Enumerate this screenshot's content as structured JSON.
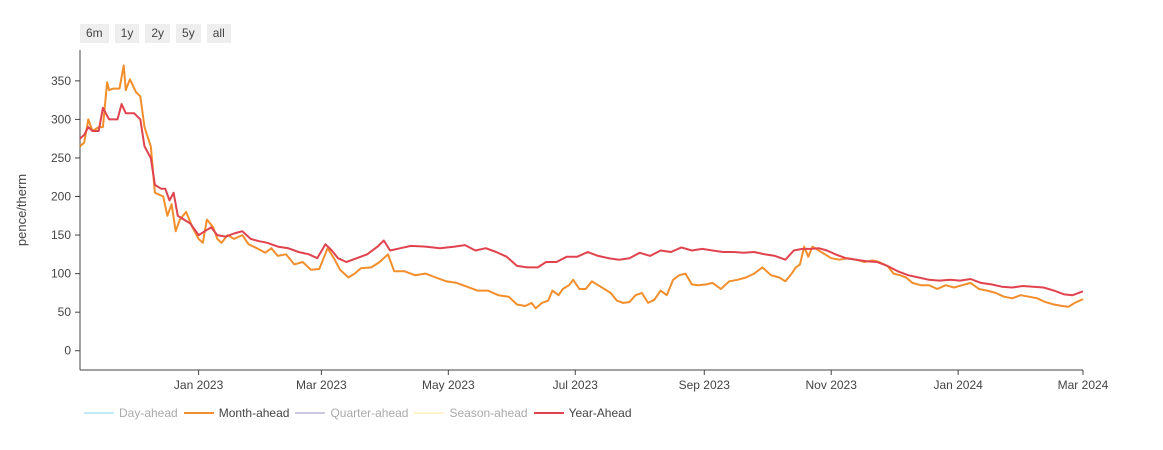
{
  "range_buttons": [
    "6m",
    "1y",
    "2y",
    "5y",
    "all"
  ],
  "chart_data": {
    "type": "line",
    "ylabel": "pence/therm",
    "xlabel": "",
    "ylim": [
      -25,
      390
    ],
    "xlim": [
      "2022-11-05",
      "2024-03-01"
    ],
    "yticks": [
      0,
      50,
      100,
      150,
      200,
      250,
      300,
      350
    ],
    "xticks": [
      {
        "date": "2023-01-01",
        "label": "Jan 2023"
      },
      {
        "date": "2023-03-01",
        "label": "Mar 2023"
      },
      {
        "date": "2023-05-01",
        "label": "May 2023"
      },
      {
        "date": "2023-07-01",
        "label": "Jul 2023"
      },
      {
        "date": "2023-09-01",
        "label": "Sep 2023"
      },
      {
        "date": "2023-11-01",
        "label": "Nov 2023"
      },
      {
        "date": "2024-01-01",
        "label": "Jan 2024"
      },
      {
        "date": "2024-03-01",
        "label": "Mar 2024"
      }
    ],
    "grid": false,
    "legend_position": "bottom-left",
    "series": [
      {
        "name": "Day-ahead",
        "color": "#7fd8ee",
        "visible": false,
        "points": []
      },
      {
        "name": "Month-ahead",
        "color": "#f28e2b",
        "visible": true,
        "points": [
          [
            "2022-11-05",
            265
          ],
          [
            "2022-11-07",
            270
          ],
          [
            "2022-11-09",
            300
          ],
          [
            "2022-11-11",
            285
          ],
          [
            "2022-11-14",
            290
          ],
          [
            "2022-11-16",
            290
          ],
          [
            "2022-11-18",
            348
          ],
          [
            "2022-11-19",
            338
          ],
          [
            "2022-11-21",
            340
          ],
          [
            "2022-11-24",
            340
          ],
          [
            "2022-11-26",
            370
          ],
          [
            "2022-11-27",
            338
          ],
          [
            "2022-11-29",
            352
          ],
          [
            "2022-12-02",
            335
          ],
          [
            "2022-12-04",
            330
          ],
          [
            "2022-12-06",
            290
          ],
          [
            "2022-12-09",
            265
          ],
          [
            "2022-12-11",
            205
          ],
          [
            "2022-12-15",
            200
          ],
          [
            "2022-12-17",
            175
          ],
          [
            "2022-12-19",
            190
          ],
          [
            "2022-12-21",
            155
          ],
          [
            "2022-12-23",
            170
          ],
          [
            "2022-12-26",
            180
          ],
          [
            "2022-12-29",
            160
          ],
          [
            "2023-01-01",
            145
          ],
          [
            "2023-01-03",
            140
          ],
          [
            "2023-01-05",
            170
          ],
          [
            "2023-01-08",
            160
          ],
          [
            "2023-01-10",
            145
          ],
          [
            "2023-01-12",
            140
          ],
          [
            "2023-01-15",
            150
          ],
          [
            "2023-01-18",
            145
          ],
          [
            "2023-01-22",
            150
          ],
          [
            "2023-01-25",
            138
          ],
          [
            "2023-01-29",
            133
          ],
          [
            "2023-02-02",
            127
          ],
          [
            "2023-02-05",
            133
          ],
          [
            "2023-02-08",
            123
          ],
          [
            "2023-02-12",
            125
          ],
          [
            "2023-02-16",
            112
          ],
          [
            "2023-02-20",
            115
          ],
          [
            "2023-02-24",
            105
          ],
          [
            "2023-02-28",
            106
          ],
          [
            "2023-03-04",
            133
          ],
          [
            "2023-03-07",
            120
          ],
          [
            "2023-03-10",
            105
          ],
          [
            "2023-03-14",
            95
          ],
          [
            "2023-03-17",
            100
          ],
          [
            "2023-03-20",
            107
          ],
          [
            "2023-03-25",
            108
          ],
          [
            "2023-03-29",
            115
          ],
          [
            "2023-04-02",
            125
          ],
          [
            "2023-04-05",
            103
          ],
          [
            "2023-04-10",
            103
          ],
          [
            "2023-04-15",
            98
          ],
          [
            "2023-04-20",
            100
          ],
          [
            "2023-04-25",
            95
          ],
          [
            "2023-04-30",
            90
          ],
          [
            "2023-05-05",
            88
          ],
          [
            "2023-05-10",
            83
          ],
          [
            "2023-05-15",
            78
          ],
          [
            "2023-05-20",
            78
          ],
          [
            "2023-05-25",
            72
          ],
          [
            "2023-05-30",
            70
          ],
          [
            "2023-06-03",
            60
          ],
          [
            "2023-06-07",
            58
          ],
          [
            "2023-06-10",
            62
          ],
          [
            "2023-06-12",
            55
          ],
          [
            "2023-06-15",
            62
          ],
          [
            "2023-06-18",
            65
          ],
          [
            "2023-06-20",
            78
          ],
          [
            "2023-06-23",
            72
          ],
          [
            "2023-06-25",
            80
          ],
          [
            "2023-06-28",
            85
          ],
          [
            "2023-06-30",
            92
          ],
          [
            "2023-07-03",
            80
          ],
          [
            "2023-07-06",
            80
          ],
          [
            "2023-07-09",
            90
          ],
          [
            "2023-07-12",
            85
          ],
          [
            "2023-07-15",
            80
          ],
          [
            "2023-07-18",
            75
          ],
          [
            "2023-07-21",
            65
          ],
          [
            "2023-07-24",
            62
          ],
          [
            "2023-07-27",
            63
          ],
          [
            "2023-07-30",
            72
          ],
          [
            "2023-08-02",
            75
          ],
          [
            "2023-08-05",
            62
          ],
          [
            "2023-08-08",
            66
          ],
          [
            "2023-08-11",
            78
          ],
          [
            "2023-08-14",
            72
          ],
          [
            "2023-08-17",
            92
          ],
          [
            "2023-08-20",
            98
          ],
          [
            "2023-08-23",
            100
          ],
          [
            "2023-08-26",
            86
          ],
          [
            "2023-08-29",
            85
          ],
          [
            "2023-09-02",
            86
          ],
          [
            "2023-09-05",
            88
          ],
          [
            "2023-09-09",
            80
          ],
          [
            "2023-09-13",
            90
          ],
          [
            "2023-09-17",
            92
          ],
          [
            "2023-09-21",
            95
          ],
          [
            "2023-09-25",
            100
          ],
          [
            "2023-09-29",
            108
          ],
          [
            "2023-10-03",
            98
          ],
          [
            "2023-10-07",
            95
          ],
          [
            "2023-10-10",
            90
          ],
          [
            "2023-10-13",
            100
          ],
          [
            "2023-10-15",
            108
          ],
          [
            "2023-10-17",
            112
          ],
          [
            "2023-10-19",
            135
          ],
          [
            "2023-10-21",
            122
          ],
          [
            "2023-10-23",
            135
          ],
          [
            "2023-10-26",
            130
          ],
          [
            "2023-10-29",
            125
          ],
          [
            "2023-11-01",
            120
          ],
          [
            "2023-11-05",
            118
          ],
          [
            "2023-11-09",
            120
          ],
          [
            "2023-11-13",
            118
          ],
          [
            "2023-11-17",
            115
          ],
          [
            "2023-11-21",
            117
          ],
          [
            "2023-11-24",
            115
          ],
          [
            "2023-11-28",
            110
          ],
          [
            "2023-12-01",
            100
          ],
          [
            "2023-12-04",
            98
          ],
          [
            "2023-12-07",
            95
          ],
          [
            "2023-12-10",
            88
          ],
          [
            "2023-12-14",
            85
          ],
          [
            "2023-12-18",
            85
          ],
          [
            "2023-12-22",
            80
          ],
          [
            "2023-12-26",
            85
          ],
          [
            "2023-12-30",
            82
          ],
          [
            "2024-01-03",
            85
          ],
          [
            "2024-01-07",
            88
          ],
          [
            "2024-01-11",
            80
          ],
          [
            "2024-01-15",
            78
          ],
          [
            "2024-01-19",
            75
          ],
          [
            "2024-01-23",
            70
          ],
          [
            "2024-01-27",
            68
          ],
          [
            "2024-01-31",
            72
          ],
          [
            "2024-02-04",
            70
          ],
          [
            "2024-02-08",
            68
          ],
          [
            "2024-02-12",
            63
          ],
          [
            "2024-02-16",
            60
          ],
          [
            "2024-02-20",
            58
          ],
          [
            "2024-02-23",
            57
          ],
          [
            "2024-02-26",
            62
          ],
          [
            "2024-03-01",
            67
          ]
        ]
      },
      {
        "name": "Quarter-ahead",
        "color": "#9b8fc9",
        "visible": false,
        "points": []
      },
      {
        "name": "Season-ahead",
        "color": "#ffe79a",
        "visible": false,
        "points": []
      },
      {
        "name": "Year-Ahead",
        "color": "#e0434e",
        "visible": true,
        "points": [
          [
            "2022-11-05",
            275
          ],
          [
            "2022-11-07",
            280
          ],
          [
            "2022-11-09",
            290
          ],
          [
            "2022-11-11",
            285
          ],
          [
            "2022-11-14",
            285
          ],
          [
            "2022-11-16",
            315
          ],
          [
            "2022-11-19",
            300
          ],
          [
            "2022-11-23",
            300
          ],
          [
            "2022-11-25",
            320
          ],
          [
            "2022-11-27",
            308
          ],
          [
            "2022-12-01",
            308
          ],
          [
            "2022-12-04",
            300
          ],
          [
            "2022-12-06",
            265
          ],
          [
            "2022-12-09",
            250
          ],
          [
            "2022-12-11",
            215
          ],
          [
            "2022-12-14",
            210
          ],
          [
            "2022-12-16",
            210
          ],
          [
            "2022-12-18",
            195
          ],
          [
            "2022-12-20",
            205
          ],
          [
            "2022-12-22",
            175
          ],
          [
            "2022-12-25",
            170
          ],
          [
            "2022-12-28",
            165
          ],
          [
            "2023-01-01",
            150
          ],
          [
            "2023-01-04",
            155
          ],
          [
            "2023-01-07",
            160
          ],
          [
            "2023-01-10",
            150
          ],
          [
            "2023-01-14",
            148
          ],
          [
            "2023-01-18",
            152
          ],
          [
            "2023-01-22",
            155
          ],
          [
            "2023-01-26",
            145
          ],
          [
            "2023-01-30",
            142
          ],
          [
            "2023-02-03",
            140
          ],
          [
            "2023-02-08",
            135
          ],
          [
            "2023-02-13",
            133
          ],
          [
            "2023-02-18",
            128
          ],
          [
            "2023-02-23",
            125
          ],
          [
            "2023-02-27",
            120
          ],
          [
            "2023-03-03",
            138
          ],
          [
            "2023-03-06",
            130
          ],
          [
            "2023-03-09",
            120
          ],
          [
            "2023-03-13",
            115
          ],
          [
            "2023-03-18",
            120
          ],
          [
            "2023-03-23",
            125
          ],
          [
            "2023-03-28",
            135
          ],
          [
            "2023-03-31",
            143
          ],
          [
            "2023-04-03",
            130
          ],
          [
            "2023-04-08",
            133
          ],
          [
            "2023-04-13",
            136
          ],
          [
            "2023-04-20",
            135
          ],
          [
            "2023-04-27",
            133
          ],
          [
            "2023-05-04",
            135
          ],
          [
            "2023-05-09",
            137
          ],
          [
            "2023-05-14",
            130
          ],
          [
            "2023-05-19",
            133
          ],
          [
            "2023-05-24",
            128
          ],
          [
            "2023-05-29",
            122
          ],
          [
            "2023-06-03",
            110
          ],
          [
            "2023-06-08",
            108
          ],
          [
            "2023-06-13",
            108
          ],
          [
            "2023-06-17",
            115
          ],
          [
            "2023-06-22",
            115
          ],
          [
            "2023-06-27",
            122
          ],
          [
            "2023-07-02",
            122
          ],
          [
            "2023-07-07",
            128
          ],
          [
            "2023-07-12",
            123
          ],
          [
            "2023-07-17",
            120
          ],
          [
            "2023-07-22",
            118
          ],
          [
            "2023-07-27",
            120
          ],
          [
            "2023-08-01",
            127
          ],
          [
            "2023-08-06",
            123
          ],
          [
            "2023-08-11",
            130
          ],
          [
            "2023-08-16",
            128
          ],
          [
            "2023-08-21",
            134
          ],
          [
            "2023-08-26",
            130
          ],
          [
            "2023-08-31",
            132
          ],
          [
            "2023-09-05",
            130
          ],
          [
            "2023-09-10",
            128
          ],
          [
            "2023-09-15",
            128
          ],
          [
            "2023-09-20",
            127
          ],
          [
            "2023-09-25",
            128
          ],
          [
            "2023-09-30",
            125
          ],
          [
            "2023-10-05",
            123
          ],
          [
            "2023-10-10",
            118
          ],
          [
            "2023-10-14",
            130
          ],
          [
            "2023-10-18",
            132
          ],
          [
            "2023-10-22",
            132
          ],
          [
            "2023-10-26",
            133
          ],
          [
            "2023-10-30",
            130
          ],
          [
            "2023-11-03",
            125
          ],
          [
            "2023-11-08",
            120
          ],
          [
            "2023-11-13",
            118
          ],
          [
            "2023-11-18",
            116
          ],
          [
            "2023-11-23",
            115
          ],
          [
            "2023-11-28",
            110
          ],
          [
            "2023-12-03",
            103
          ],
          [
            "2023-12-08",
            98
          ],
          [
            "2023-12-13",
            95
          ],
          [
            "2023-12-18",
            92
          ],
          [
            "2023-12-23",
            91
          ],
          [
            "2023-12-28",
            92
          ],
          [
            "2024-01-02",
            91
          ],
          [
            "2024-01-07",
            93
          ],
          [
            "2024-01-12",
            88
          ],
          [
            "2024-01-17",
            86
          ],
          [
            "2024-01-22",
            83
          ],
          [
            "2024-01-27",
            82
          ],
          [
            "2024-02-01",
            84
          ],
          [
            "2024-02-06",
            83
          ],
          [
            "2024-02-11",
            82
          ],
          [
            "2024-02-16",
            78
          ],
          [
            "2024-02-21",
            73
          ],
          [
            "2024-02-25",
            72
          ],
          [
            "2024-03-01",
            77
          ]
        ]
      }
    ]
  }
}
